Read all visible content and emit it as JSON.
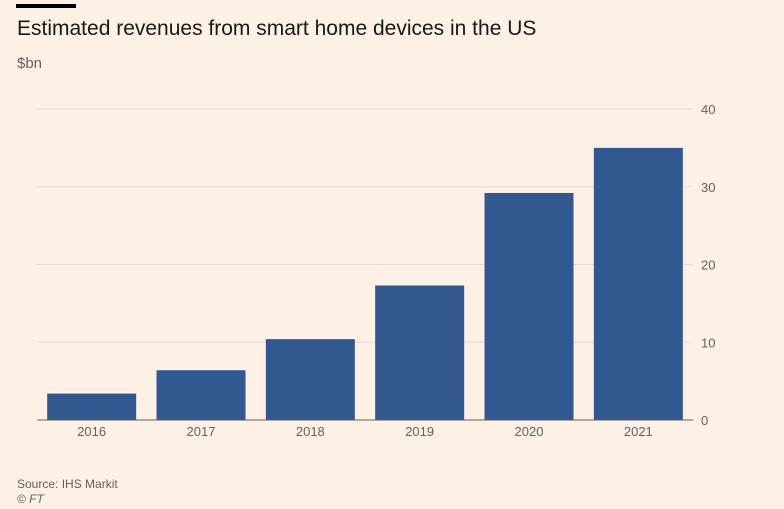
{
  "chart_data": {
    "type": "bar",
    "title": "Estimated revenues from smart home devices in the US",
    "subtitle": "$bn",
    "categories": [
      "2016",
      "2017",
      "2018",
      "2019",
      "2020",
      "2021"
    ],
    "values": [
      3.4,
      6.4,
      10.4,
      17.3,
      29.2,
      35.0
    ],
    "ylim": [
      0,
      40
    ],
    "yticks": [
      0,
      10,
      20,
      30,
      40
    ],
    "y_axis_side": "right",
    "grid": true,
    "bar_color": "#325891",
    "source": "Source: IHS Markit",
    "copyright": "© FT"
  }
}
